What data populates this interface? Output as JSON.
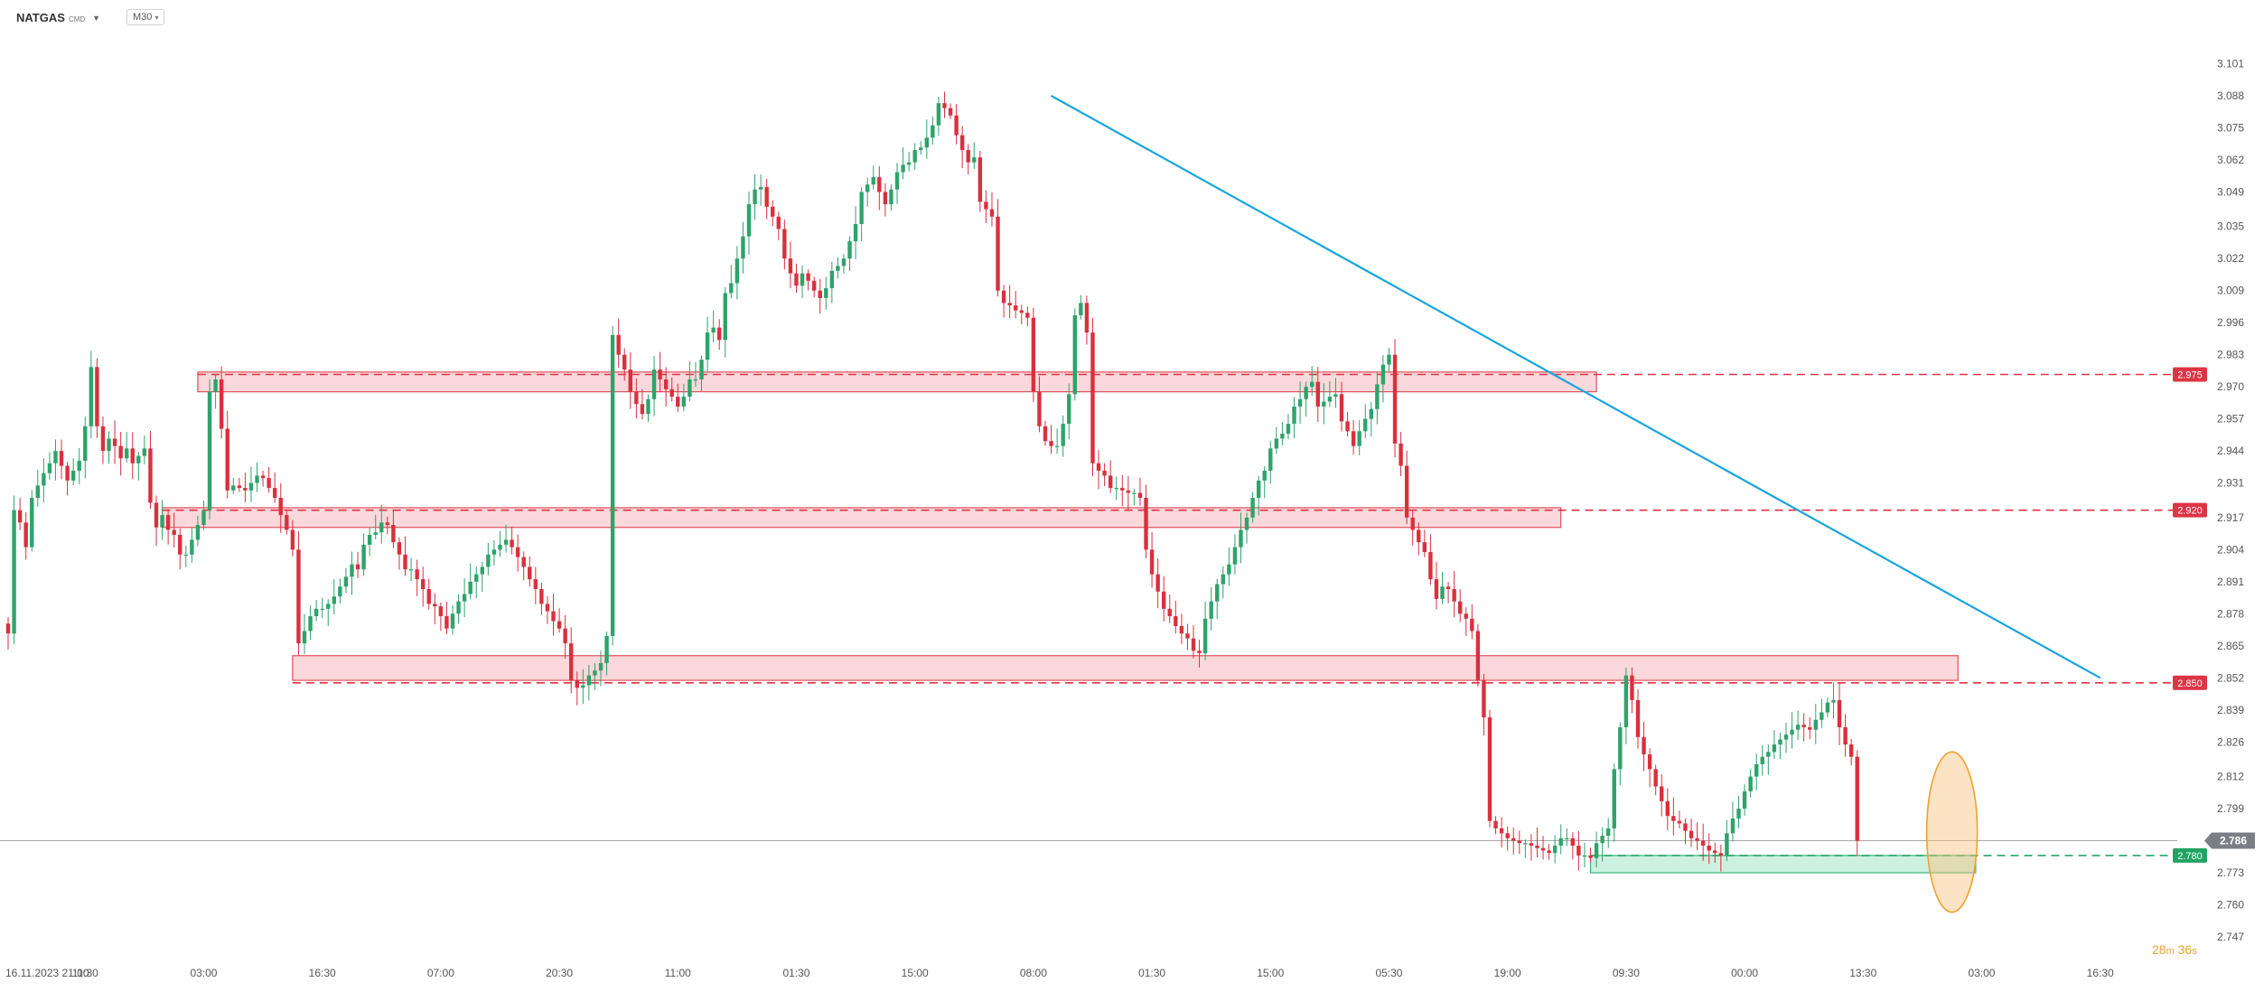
{
  "header": {
    "symbol": "NATGAS",
    "symbol_suffix": "CMD",
    "timeframe": "M30"
  },
  "countdown": {
    "minutes": "28",
    "minutes_unit": "m",
    "seconds": "36",
    "seconds_unit": "s"
  },
  "colors": {
    "up": "#2ea36b",
    "down": "#d9303e",
    "trendline": "#18a5e0",
    "zone_fill": "#f8c8cc",
    "zone_stroke": "#e0505a",
    "support_fill": "#bdebd5",
    "highlight": "#f7c27a"
  },
  "chart_data": {
    "type": "candlestick",
    "title": "",
    "ylim": [
      2.747,
      3.114
    ],
    "y_ticks": [
      "3.101",
      "3.088",
      "3.075",
      "3.062",
      "3.049",
      "3.035",
      "3.022",
      "3.009",
      "2.996",
      "2.983",
      "2.970",
      "2.957",
      "2.944",
      "2.931",
      "2.917",
      "2.904",
      "2.891",
      "2.878",
      "2.865",
      "2.852",
      "2.839",
      "2.826",
      "2.812",
      "2.799",
      "2.786",
      "2.773",
      "2.760",
      "2.747"
    ],
    "x_ticks": [
      "16.11.2023  21:00",
      "11:30",
      "03:00",
      "16:30",
      "07:00",
      "20:30",
      "11:00",
      "01:30",
      "15:00",
      "08:00",
      "01:30",
      "15:00",
      "05:30",
      "19:00",
      "09:30",
      "00:00",
      "13:30",
      "03:00",
      "16:30"
    ],
    "x_tick_index": [
      0,
      13,
      33,
      53,
      73,
      93,
      113,
      133,
      153,
      173,
      193,
      213,
      233,
      253,
      273,
      293,
      313,
      333,
      353
    ],
    "resistance_levels": [
      {
        "value": 2.975,
        "label": "2.975"
      },
      {
        "value": 2.92,
        "label": "2.920"
      },
      {
        "value": 2.85,
        "label": "2.850"
      }
    ],
    "support_level": {
      "value": 2.78,
      "label": "2.780"
    },
    "current_price": {
      "value": 2.786,
      "label": "2.786"
    },
    "zones": [
      {
        "from_index": 32,
        "to_index": 268,
        "low": 2.968,
        "high": 2.976
      },
      {
        "from_index": 26,
        "to_index": 262,
        "low": 2.913,
        "high": 2.921
      },
      {
        "from_index": 48,
        "to_index": 329,
        "low": 2.851,
        "high": 2.861
      },
      {
        "from_index": 267,
        "to_index": 332,
        "low": 2.773,
        "high": 2.78,
        "kind": "support"
      }
    ],
    "trendline": {
      "from": {
        "index": 176,
        "value": 3.088
      },
      "to": {
        "index": 353,
        "value": 2.852
      }
    },
    "highlight": {
      "index": 328,
      "from": 2.757,
      "to": 2.822
    },
    "closes": [
      2.87,
      2.92,
      2.915,
      2.905,
      2.925,
      2.93,
      2.935,
      2.939,
      2.944,
      2.938,
      2.932,
      2.936,
      2.94,
      2.954,
      2.978,
      2.954,
      2.944,
      2.949,
      2.946,
      2.941,
      2.945,
      2.939,
      2.942,
      2.945,
      2.923,
      2.913,
      2.918,
      2.912,
      2.91,
      2.902,
      2.902,
      2.908,
      2.914,
      2.92,
      2.968,
      2.973,
      2.953,
      2.928,
      2.93,
      2.929,
      2.928,
      2.931,
      2.934,
      2.933,
      2.929,
      2.925,
      2.918,
      2.912,
      2.904,
      2.866,
      2.871,
      2.877,
      2.88,
      2.88,
      2.882,
      2.885,
      2.889,
      2.893,
      2.898,
      2.896,
      2.906,
      2.91,
      2.911,
      2.915,
      2.914,
      2.907,
      2.902,
      2.896,
      2.896,
      2.892,
      2.888,
      2.882,
      2.881,
      2.877,
      2.872,
      2.878,
      2.883,
      2.886,
      2.891,
      2.894,
      2.897,
      2.902,
      2.904,
      2.906,
      2.908,
      2.905,
      2.901,
      2.897,
      2.892,
      2.888,
      2.882,
      2.879,
      2.875,
      2.872,
      2.866,
      2.851,
      2.848,
      2.849,
      2.853,
      2.855,
      2.858,
      2.869,
      2.991,
      2.983,
      2.977,
      2.968,
      2.963,
      2.959,
      2.965,
      2.977,
      2.973,
      2.969,
      2.966,
      2.962,
      2.966,
      2.973,
      2.973,
      2.981,
      2.992,
      2.994,
      2.989,
      3.008,
      3.012,
      3.022,
      3.031,
      3.044,
      3.05,
      3.051,
      3.043,
      3.039,
      3.034,
      3.022,
      3.016,
      3.011,
      3.016,
      3.013,
      3.009,
      3.006,
      3.01,
      3.017,
      3.019,
      3.022,
      3.029,
      3.036,
      3.049,
      3.052,
      3.055,
      3.049,
      3.044,
      3.05,
      3.057,
      3.06,
      3.061,
      3.066,
      3.067,
      3.071,
      3.076,
      3.085,
      3.083,
      3.08,
      3.072,
      3.066,
      3.061,
      3.063,
      3.045,
      3.042,
      3.039,
      3.009,
      3.004,
      3.003,
      3.001,
      3.0,
      2.998,
      2.968,
      2.954,
      2.948,
      2.946,
      2.946,
      2.955,
      2.967,
      2.999,
      3.004,
      2.992,
      2.939,
      2.936,
      2.934,
      2.929,
      2.929,
      2.928,
      2.927,
      2.927,
      2.925,
      2.904,
      2.894,
      2.887,
      2.88,
      2.877,
      2.873,
      2.87,
      2.868,
      2.863,
      2.862,
      2.876,
      2.883,
      2.89,
      2.894,
      2.898,
      2.905,
      2.912,
      2.917,
      2.925,
      2.932,
      2.936,
      2.945,
      2.949,
      2.951,
      2.955,
      2.962,
      2.965,
      2.97,
      2.972,
      2.962,
      2.964,
      2.966,
      2.967,
      2.956,
      2.952,
      2.946,
      2.952,
      2.957,
      2.961,
      2.971,
      2.979,
      2.983,
      2.947,
      2.938,
      2.917,
      2.912,
      2.907,
      2.903,
      2.892,
      2.884,
      2.889,
      2.888,
      2.883,
      2.878,
      2.876,
      2.871,
      2.851,
      2.836,
      2.794,
      2.791,
      2.789,
      2.787,
      2.786,
      2.785,
      2.785,
      2.784,
      2.783,
      2.782,
      2.781,
      2.784,
      2.787,
      2.787,
      2.784,
      2.78,
      2.78,
      2.779,
      2.785,
      2.788,
      2.791,
      2.815,
      2.832,
      2.853,
      2.843,
      2.828,
      2.821,
      2.815,
      2.808,
      2.802,
      2.796,
      2.794,
      2.793,
      2.79,
      2.787,
      2.786,
      2.784,
      2.782,
      2.781,
      2.78,
      2.789,
      2.795,
      2.799,
      2.806,
      2.812,
      2.817,
      2.82,
      2.822,
      2.825,
      2.827,
      2.829,
      2.831,
      2.833,
      2.832,
      2.831,
      2.835,
      2.838,
      2.842,
      2.843,
      2.832,
      2.825,
      2.82,
      2.786
    ]
  }
}
